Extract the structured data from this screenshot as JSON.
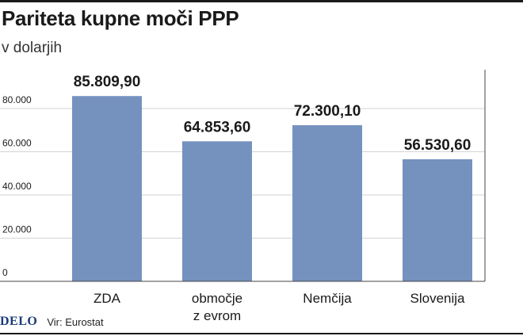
{
  "header": {
    "title": "Pariteta kupne moči PPP",
    "subtitle": "v dolarjih"
  },
  "footer": {
    "logo": "DELO",
    "source": "Vir: Eurostat"
  },
  "colors": {
    "bar": "#7592bf",
    "grid": "#d3d3d3",
    "axis": "#444444",
    "text": "#1a1a1a"
  },
  "chart_data": {
    "type": "bar",
    "title": "Pariteta kupne moči PPP",
    "subtitle": "v dolarjih",
    "categories": [
      [
        "ZDA"
      ],
      [
        "območje",
        "z evrom"
      ],
      [
        "Nemčija"
      ],
      [
        "Slovenija"
      ]
    ],
    "values": [
      85809.9,
      64853.6,
      72300.1,
      56530.6
    ],
    "data_labels": [
      "85.809,90",
      "64.853,60",
      "72.300,10",
      "56.530,60"
    ],
    "yticks": [
      0,
      20000,
      40000,
      60000,
      80000
    ],
    "ytick_labels": [
      "0",
      "20.000",
      "40.000",
      "60.000",
      "80.000"
    ],
    "ylim": [
      0,
      98000
    ],
    "grid": true,
    "xlabel": "",
    "ylabel": ""
  }
}
